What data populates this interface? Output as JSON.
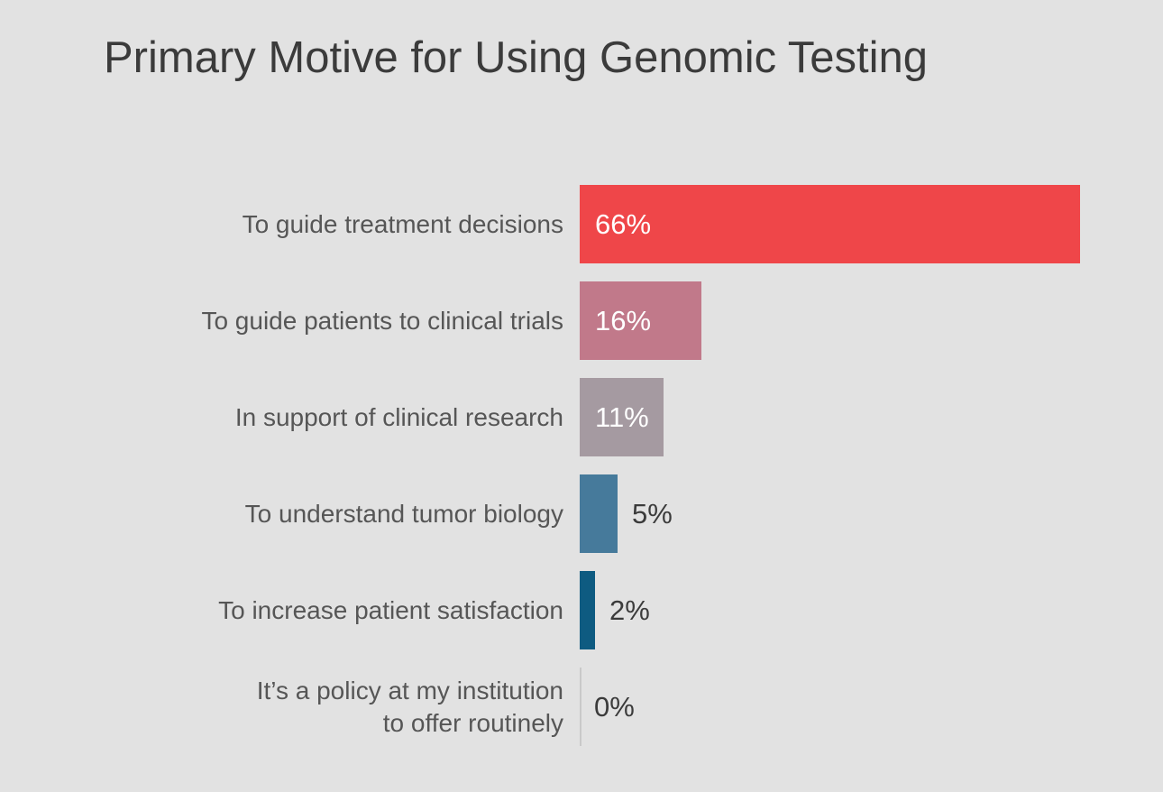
{
  "chart_data": {
    "type": "bar",
    "orientation": "horizontal",
    "title": "Primary Motive for Using Genomic Testing",
    "categories": [
      "To guide treatment decisions",
      "To guide patients to clinical trials",
      "In support of clinical research",
      "To understand tumor biology",
      "To increase patient satisfaction",
      "It’s a policy at my institution\nto offer routinely"
    ],
    "values": [
      66,
      16,
      11,
      5,
      2,
      0
    ],
    "value_suffix": "%",
    "value_labels": [
      "66%",
      "16%",
      "11%",
      "5%",
      "2%",
      "0%"
    ],
    "value_label_inside": [
      true,
      true,
      true,
      false,
      false,
      false
    ],
    "bar_colors": [
      "#ef4649",
      "#c1798a",
      "#a59aa1",
      "#467a9b",
      "#0e5b81",
      null
    ],
    "xlabel": "",
    "ylabel": "",
    "xlim": [
      0,
      77
    ],
    "grid": false,
    "legend": false,
    "baseline_axis_color": "#c9c9c9"
  },
  "colors": {
    "background": "#e2e2e2",
    "title_text": "#3b3b3b",
    "category_text": "#565656",
    "value_text_inside": "#ffffff",
    "value_text_outside": "#3b3b3b"
  }
}
